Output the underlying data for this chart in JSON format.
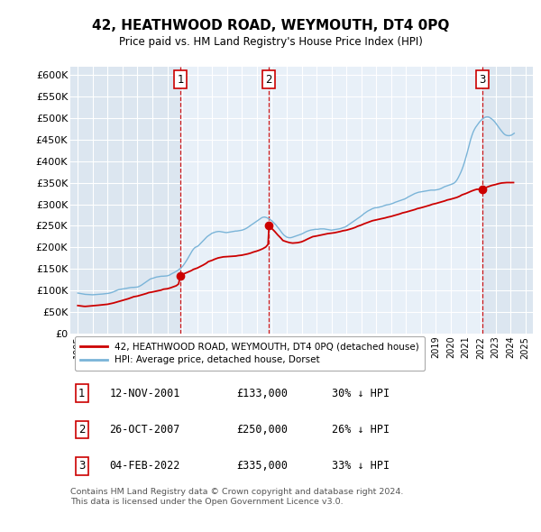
{
  "title": "42, HEATHWOOD ROAD, WEYMOUTH, DT4 0PQ",
  "subtitle": "Price paid vs. HM Land Registry's House Price Index (HPI)",
  "background_color": "#ffffff",
  "plot_bg_color": "#dce6f0",
  "plot_shade_color": "#e8f0f8",
  "grid_color": "#ffffff",
  "hpi_color": "#7ab4d8",
  "price_color": "#cc0000",
  "ylim": [
    0,
    620000
  ],
  "yticks": [
    0,
    50000,
    100000,
    150000,
    200000,
    250000,
    300000,
    350000,
    400000,
    450000,
    500000,
    550000,
    600000
  ],
  "xlim": [
    1994.5,
    2025.5
  ],
  "sale_year_nums": [
    2001.872,
    2007.817,
    2022.093
  ],
  "sale_prices": [
    133000,
    250000,
    335000
  ],
  "sale_labels": [
    "1",
    "2",
    "3"
  ],
  "table_rows": [
    [
      "1",
      "12-NOV-2001",
      "£133,000",
      "30% ↓ HPI"
    ],
    [
      "2",
      "26-OCT-2007",
      "£250,000",
      "26% ↓ HPI"
    ],
    [
      "3",
      "04-FEB-2022",
      "£335,000",
      "33% ↓ HPI"
    ]
  ],
  "legend_line1": "42, HEATHWOOD ROAD, WEYMOUTH, DT4 0PQ (detached house)",
  "legend_line2": "HPI: Average price, detached house, Dorset",
  "footer": "Contains HM Land Registry data © Crown copyright and database right 2024.\nThis data is licensed under the Open Government Licence v3.0.",
  "hpi_data_years": [
    1995.0,
    1995.083,
    1995.167,
    1995.25,
    1995.333,
    1995.417,
    1995.5,
    1995.583,
    1995.667,
    1995.75,
    1995.833,
    1995.917,
    1996.0,
    1996.083,
    1996.167,
    1996.25,
    1996.333,
    1996.417,
    1996.5,
    1996.583,
    1996.667,
    1996.75,
    1996.833,
    1996.917,
    1997.0,
    1997.083,
    1997.167,
    1997.25,
    1997.333,
    1997.417,
    1997.5,
    1997.583,
    1997.667,
    1997.75,
    1997.833,
    1997.917,
    1998.0,
    1998.083,
    1998.167,
    1998.25,
    1998.333,
    1998.417,
    1998.5,
    1998.583,
    1998.667,
    1998.75,
    1998.833,
    1998.917,
    1999.0,
    1999.083,
    1999.167,
    1999.25,
    1999.333,
    1999.417,
    1999.5,
    1999.583,
    1999.667,
    1999.75,
    1999.833,
    1999.917,
    2000.0,
    2000.083,
    2000.167,
    2000.25,
    2000.333,
    2000.417,
    2000.5,
    2000.583,
    2000.667,
    2000.75,
    2000.833,
    2000.917,
    2001.0,
    2001.083,
    2001.167,
    2001.25,
    2001.333,
    2001.417,
    2001.5,
    2001.583,
    2001.667,
    2001.75,
    2001.833,
    2001.917,
    2002.0,
    2002.083,
    2002.167,
    2002.25,
    2002.333,
    2002.417,
    2002.5,
    2002.583,
    2002.667,
    2002.75,
    2002.833,
    2002.917,
    2003.0,
    2003.083,
    2003.167,
    2003.25,
    2003.333,
    2003.417,
    2003.5,
    2003.583,
    2003.667,
    2003.75,
    2003.833,
    2003.917,
    2004.0,
    2004.083,
    2004.167,
    2004.25,
    2004.333,
    2004.417,
    2004.5,
    2004.583,
    2004.667,
    2004.75,
    2004.833,
    2004.917,
    2005.0,
    2005.083,
    2005.167,
    2005.25,
    2005.333,
    2005.417,
    2005.5,
    2005.583,
    2005.667,
    2005.75,
    2005.833,
    2005.917,
    2006.0,
    2006.083,
    2006.167,
    2006.25,
    2006.333,
    2006.417,
    2006.5,
    2006.583,
    2006.667,
    2006.75,
    2006.833,
    2006.917,
    2007.0,
    2007.083,
    2007.167,
    2007.25,
    2007.333,
    2007.417,
    2007.5,
    2007.583,
    2007.667,
    2007.75,
    2007.833,
    2007.917,
    2008.0,
    2008.083,
    2008.167,
    2008.25,
    2008.333,
    2008.417,
    2008.5,
    2008.583,
    2008.667,
    2008.75,
    2008.833,
    2008.917,
    2009.0,
    2009.083,
    2009.167,
    2009.25,
    2009.333,
    2009.417,
    2009.5,
    2009.583,
    2009.667,
    2009.75,
    2009.833,
    2009.917,
    2010.0,
    2010.083,
    2010.167,
    2010.25,
    2010.333,
    2010.417,
    2010.5,
    2010.583,
    2010.667,
    2010.75,
    2010.833,
    2010.917,
    2011.0,
    2011.083,
    2011.167,
    2011.25,
    2011.333,
    2011.417,
    2011.5,
    2011.583,
    2011.667,
    2011.75,
    2011.833,
    2011.917,
    2012.0,
    2012.083,
    2012.167,
    2012.25,
    2012.333,
    2012.417,
    2012.5,
    2012.583,
    2012.667,
    2012.75,
    2012.833,
    2012.917,
    2013.0,
    2013.083,
    2013.167,
    2013.25,
    2013.333,
    2013.417,
    2013.5,
    2013.583,
    2013.667,
    2013.75,
    2013.833,
    2013.917,
    2014.0,
    2014.083,
    2014.167,
    2014.25,
    2014.333,
    2014.417,
    2014.5,
    2014.583,
    2014.667,
    2014.75,
    2014.833,
    2014.917,
    2015.0,
    2015.083,
    2015.167,
    2015.25,
    2015.333,
    2015.417,
    2015.5,
    2015.583,
    2015.667,
    2015.75,
    2015.833,
    2015.917,
    2016.0,
    2016.083,
    2016.167,
    2016.25,
    2016.333,
    2016.417,
    2016.5,
    2016.583,
    2016.667,
    2016.75,
    2016.833,
    2016.917,
    2017.0,
    2017.083,
    2017.167,
    2017.25,
    2017.333,
    2017.417,
    2017.5,
    2017.583,
    2017.667,
    2017.75,
    2017.833,
    2017.917,
    2018.0,
    2018.083,
    2018.167,
    2018.25,
    2018.333,
    2018.417,
    2018.5,
    2018.583,
    2018.667,
    2018.75,
    2018.833,
    2018.917,
    2019.0,
    2019.083,
    2019.167,
    2019.25,
    2019.333,
    2019.417,
    2019.5,
    2019.583,
    2019.667,
    2019.75,
    2019.833,
    2019.917,
    2020.0,
    2020.083,
    2020.167,
    2020.25,
    2020.333,
    2020.417,
    2020.5,
    2020.583,
    2020.667,
    2020.75,
    2020.833,
    2020.917,
    2021.0,
    2021.083,
    2021.167,
    2021.25,
    2021.333,
    2021.417,
    2021.5,
    2021.583,
    2021.667,
    2021.75,
    2021.833,
    2021.917,
    2022.0,
    2022.083,
    2022.167,
    2022.25,
    2022.333,
    2022.417,
    2022.5,
    2022.583,
    2022.667,
    2022.75,
    2022.833,
    2022.917,
    2023.0,
    2023.083,
    2023.167,
    2023.25,
    2023.333,
    2023.417,
    2023.5,
    2023.583,
    2023.667,
    2023.75,
    2023.833,
    2023.917,
    2024.0,
    2024.083,
    2024.167,
    2024.25
  ],
  "hpi_data_values": [
    94000,
    93500,
    93000,
    92500,
    92000,
    91500,
    91000,
    90800,
    90600,
    90400,
    90200,
    90000,
    90000,
    90200,
    90400,
    90600,
    90800,
    91000,
    91200,
    91500,
    91800,
    92100,
    92400,
    92700,
    93000,
    93500,
    94200,
    95000,
    96000,
    97200,
    98500,
    99800,
    101000,
    102000,
    102500,
    103000,
    103500,
    104000,
    104500,
    105000,
    105500,
    106000,
    106500,
    107000,
    107000,
    107200,
    107400,
    107600,
    108000,
    109000,
    110500,
    112000,
    114000,
    116000,
    118000,
    120000,
    122000,
    124000,
    126000,
    127500,
    128000,
    129000,
    130000,
    131000,
    131500,
    132000,
    132500,
    133000,
    133000,
    133200,
    133500,
    133800,
    134000,
    135000,
    136000,
    138000,
    139500,
    141000,
    142500,
    144000,
    146000,
    148000,
    150000,
    152000,
    155000,
    159000,
    163000,
    167500,
    172000,
    177000,
    182000,
    187000,
    192000,
    196000,
    199000,
    201000,
    202000,
    204000,
    207000,
    210000,
    213000,
    216000,
    219000,
    222000,
    225000,
    227000,
    229000,
    231000,
    233000,
    234000,
    235000,
    236000,
    236500,
    237000,
    237000,
    236500,
    236000,
    235500,
    235000,
    234500,
    234500,
    235000,
    235500,
    236000,
    236500,
    237000,
    237500,
    238000,
    238000,
    238500,
    239000,
    239500,
    240000,
    241000,
    242000,
    243500,
    245000,
    247000,
    249000,
    251000,
    253000,
    255000,
    257000,
    259000,
    261000,
    263000,
    265000,
    267000,
    269000,
    270000,
    270500,
    270000,
    269000,
    267500,
    266000,
    264000,
    262000,
    259000,
    256000,
    253000,
    249500,
    246000,
    242500,
    238500,
    234500,
    231000,
    228000,
    226000,
    224000,
    223000,
    222500,
    222500,
    223000,
    224000,
    225000,
    226000,
    227000,
    228000,
    229000,
    230000,
    231000,
    232500,
    234000,
    235500,
    237000,
    238000,
    239000,
    240000,
    240500,
    241000,
    241500,
    242000,
    242000,
    242000,
    242500,
    243000,
    243000,
    243000,
    243000,
    242500,
    242000,
    241500,
    241000,
    240500,
    240000,
    240500,
    241000,
    241500,
    242000,
    242500,
    243000,
    243500,
    244500,
    245500,
    246500,
    247500,
    249000,
    251000,
    253000,
    255000,
    257000,
    259000,
    261000,
    263000,
    265000,
    267000,
    269000,
    271000,
    273000,
    275500,
    278000,
    280000,
    282000,
    284000,
    285500,
    287000,
    288500,
    290000,
    291000,
    292000,
    292000,
    292500,
    293000,
    294000,
    294500,
    295500,
    296500,
    297500,
    298500,
    299000,
    299500,
    300000,
    301000,
    302000,
    303000,
    304500,
    305500,
    306500,
    307500,
    308500,
    309500,
    310500,
    311500,
    312500,
    314000,
    316000,
    317500,
    319000,
    320500,
    322000,
    323500,
    325000,
    326000,
    327000,
    328000,
    328500,
    329000,
    329500,
    330000,
    330500,
    331000,
    331500,
    332000,
    332500,
    333000,
    333000,
    333000,
    333000,
    333500,
    334000,
    334500,
    335500,
    336500,
    338000,
    339500,
    341000,
    342000,
    343000,
    344000,
    345000,
    346000,
    347000,
    348500,
    350000,
    353000,
    357000,
    362000,
    368000,
    374000,
    381000,
    389000,
    398000,
    408000,
    418000,
    429000,
    440000,
    451000,
    460000,
    468000,
    474000,
    479000,
    483000,
    487000,
    491000,
    494000,
    497000,
    499500,
    501000,
    502500,
    503000,
    503000,
    502000,
    500000,
    498000,
    495500,
    492500,
    489000,
    485000,
    481000,
    477000,
    473000,
    469500,
    466000,
    463000,
    461000,
    460000,
    459500,
    459500,
    460000,
    461000,
    463000,
    465000
  ],
  "price_data_years": [
    1995.0,
    1995.1,
    1995.25,
    1995.4,
    1995.5,
    1995.7,
    1995.83,
    1996.0,
    1996.1,
    1996.25,
    1996.4,
    1996.6,
    1996.75,
    1997.0,
    1997.2,
    1997.4,
    1997.5,
    1997.7,
    1997.9,
    1998.0,
    1998.2,
    1998.4,
    1998.6,
    1998.75,
    1999.0,
    1999.2,
    1999.4,
    1999.6,
    1999.75,
    2000.0,
    2000.2,
    2000.4,
    2000.6,
    2000.75,
    2001.0,
    2001.2,
    2001.4,
    2001.6,
    2001.75,
    2001.872,
    2002.0,
    2002.2,
    2002.4,
    2002.6,
    2002.75,
    2003.0,
    2003.2,
    2003.4,
    2003.6,
    2003.75,
    2004.0,
    2004.2,
    2004.4,
    2004.6,
    2004.75,
    2005.0,
    2005.2,
    2005.4,
    2005.6,
    2005.75,
    2006.0,
    2006.2,
    2006.4,
    2006.6,
    2006.75,
    2007.0,
    2007.2,
    2007.4,
    2007.6,
    2007.75,
    2007.817,
    2008.0,
    2008.2,
    2008.4,
    2008.6,
    2008.75,
    2009.0,
    2009.2,
    2009.4,
    2009.6,
    2009.75,
    2010.0,
    2010.2,
    2010.4,
    2010.6,
    2010.75,
    2011.0,
    2011.2,
    2011.4,
    2011.6,
    2011.75,
    2012.0,
    2012.2,
    2012.4,
    2012.6,
    2012.75,
    2013.0,
    2013.2,
    2013.4,
    2013.6,
    2013.75,
    2014.0,
    2014.2,
    2014.4,
    2014.6,
    2014.75,
    2015.0,
    2015.2,
    2015.4,
    2015.6,
    2015.75,
    2016.0,
    2016.2,
    2016.4,
    2016.6,
    2016.75,
    2017.0,
    2017.2,
    2017.4,
    2017.6,
    2017.75,
    2018.0,
    2018.2,
    2018.4,
    2018.6,
    2018.75,
    2019.0,
    2019.2,
    2019.4,
    2019.6,
    2019.75,
    2020.0,
    2020.2,
    2020.4,
    2020.6,
    2020.75,
    2021.0,
    2021.2,
    2021.4,
    2021.6,
    2021.75,
    2022.0,
    2022.093,
    2022.3,
    2022.5,
    2022.75,
    2023.0,
    2023.2,
    2023.4,
    2023.6,
    2023.75,
    2024.0,
    2024.2
  ],
  "price_data_values": [
    65000,
    64500,
    63800,
    63200,
    63000,
    63500,
    64000,
    64500,
    64800,
    65200,
    65800,
    66500,
    67000,
    68000,
    69500,
    71000,
    72000,
    74000,
    76000,
    77000,
    79000,
    81000,
    83500,
    85500,
    87000,
    89000,
    91000,
    93000,
    95000,
    96500,
    98000,
    99500,
    101000,
    103000,
    104000,
    106000,
    108500,
    111000,
    115000,
    133000,
    137000,
    140000,
    143000,
    146000,
    149000,
    152000,
    155500,
    159000,
    163000,
    167000,
    170000,
    173000,
    175500,
    177000,
    178000,
    178500,
    179000,
    179500,
    180000,
    181000,
    182000,
    183500,
    185000,
    187000,
    189000,
    191500,
    194000,
    197000,
    201000,
    207000,
    250000,
    244000,
    237000,
    229000,
    222000,
    216000,
    213000,
    211000,
    210000,
    210500,
    211000,
    213000,
    216000,
    219500,
    222500,
    225000,
    226500,
    228000,
    229500,
    231000,
    232000,
    233000,
    234000,
    235500,
    237000,
    238500,
    240000,
    242000,
    244000,
    246500,
    249000,
    252000,
    255000,
    257500,
    260000,
    262000,
    264000,
    265500,
    267000,
    268500,
    270000,
    272000,
    274000,
    276000,
    278000,
    280000,
    282000,
    284000,
    286000,
    288000,
    290000,
    292000,
    294000,
    296000,
    298000,
    300000,
    302000,
    304000,
    306000,
    308000,
    310000,
    312000,
    314000,
    316000,
    319000,
    322000,
    325000,
    328000,
    331000,
    333500,
    335000,
    335000,
    335000,
    338000,
    341000,
    344000,
    346000,
    348000,
    349500,
    350000,
    350500,
    350500,
    350500
  ]
}
